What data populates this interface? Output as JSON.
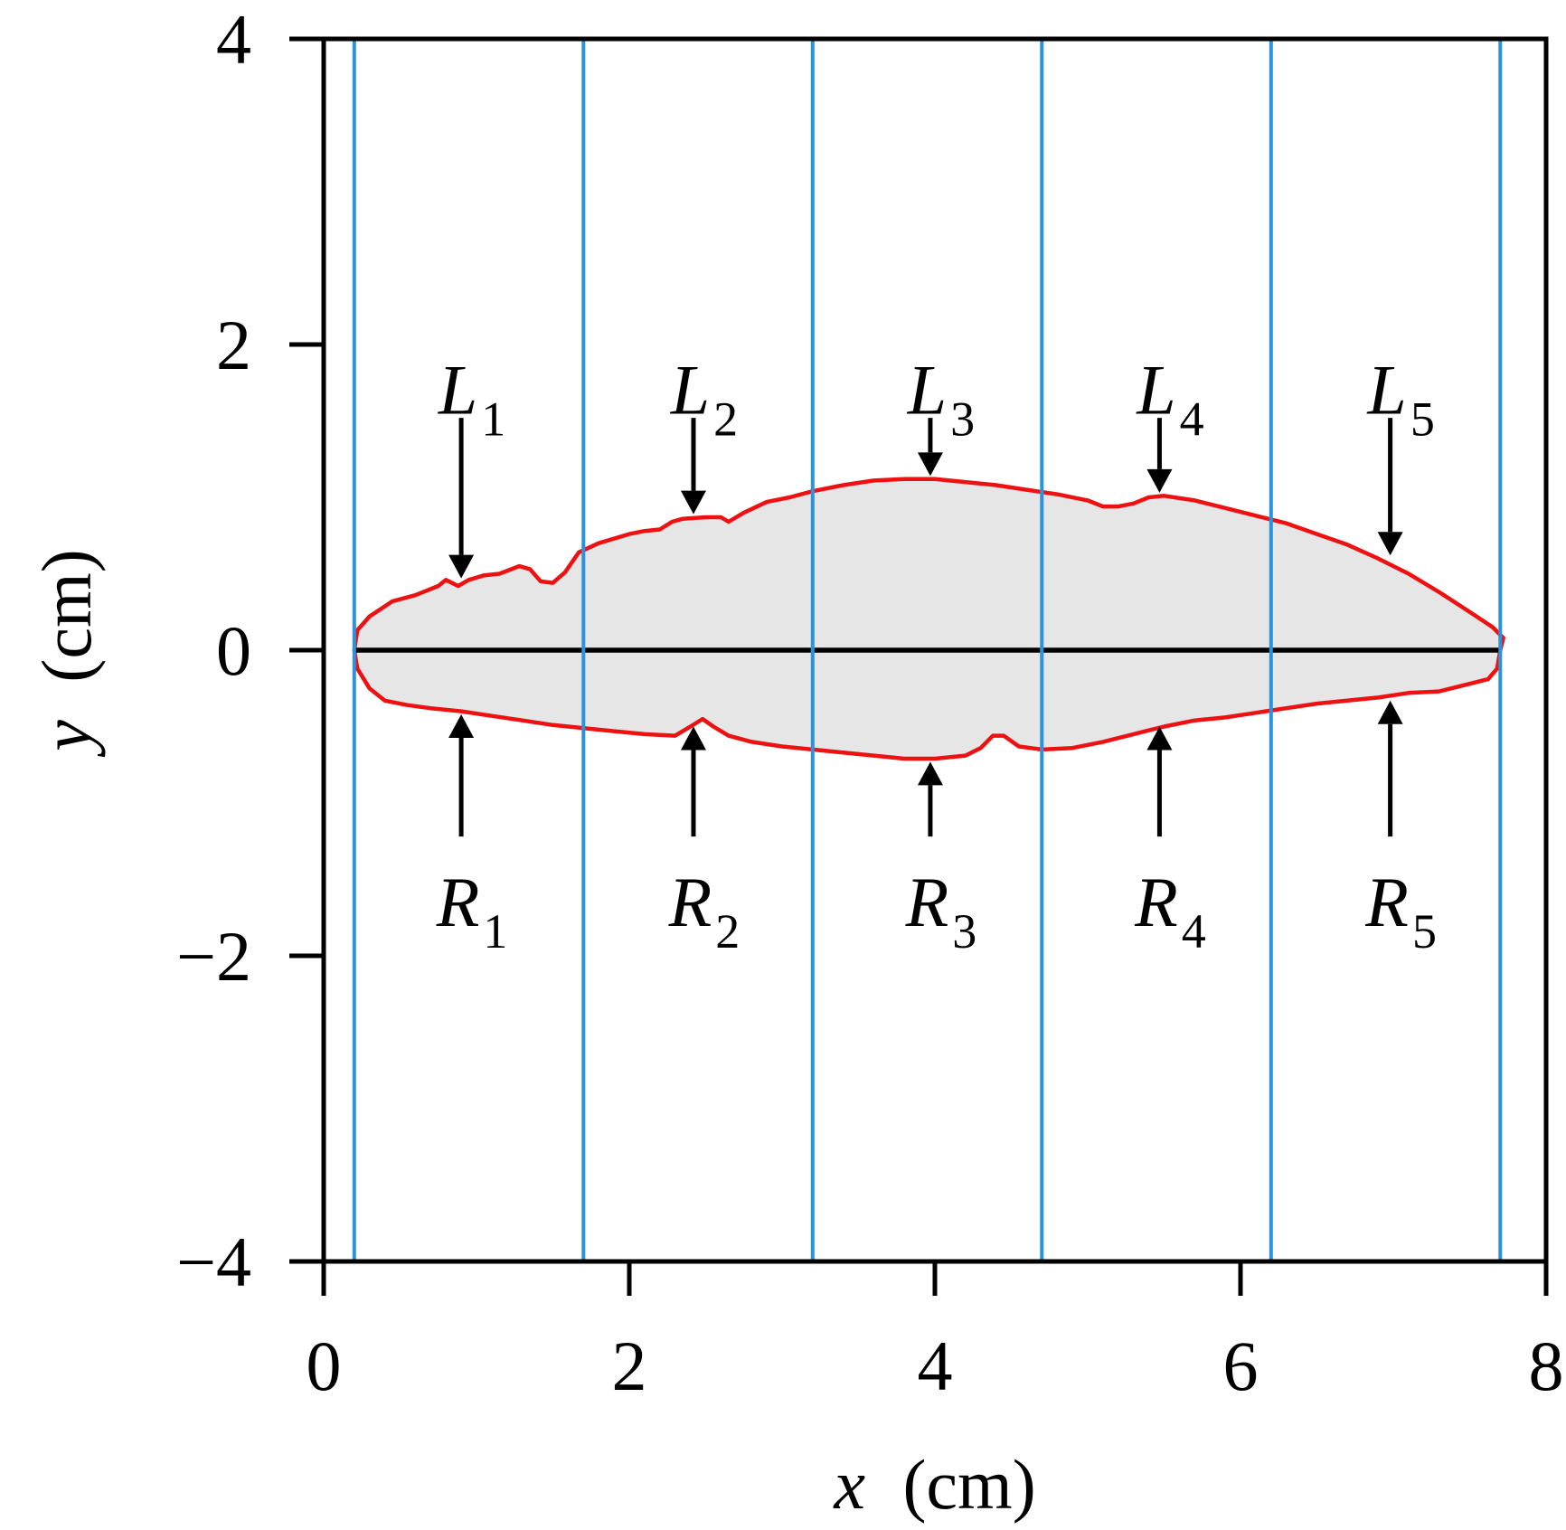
{
  "chart_data": {
    "type": "area",
    "xlabel": {
      "var": "x",
      "unit": "(cm)"
    },
    "ylabel": {
      "var": "y",
      "unit": "(cm)"
    },
    "xlim": [
      0,
      8
    ],
    "ylim": [
      -4,
      4
    ],
    "x_ticks": [
      0,
      2,
      4,
      6,
      8
    ],
    "y_ticks": [
      4,
      2,
      0,
      -2,
      -4
    ],
    "y_tick_labels": [
      "4",
      "2",
      "0",
      "−2",
      "−4"
    ],
    "grid": false,
    "colors": {
      "outline": "#ee1111",
      "fill": "#e6e6e6",
      "vlines": "#2a93dd",
      "midline": "#000000"
    },
    "vertical_lines_x": [
      0.2,
      1.7,
      3.2,
      4.7,
      6.2,
      7.7
    ],
    "midline": {
      "x_start": 0.2,
      "x_end": 7.7,
      "y": 0
    },
    "upper_boundary": [
      [
        0.2,
        0.0
      ],
      [
        0.22,
        0.13
      ],
      [
        0.3,
        0.22
      ],
      [
        0.45,
        0.32
      ],
      [
        0.6,
        0.36
      ],
      [
        0.75,
        0.42
      ],
      [
        0.8,
        0.46
      ],
      [
        0.88,
        0.42
      ],
      [
        0.95,
        0.46
      ],
      [
        1.05,
        0.49
      ],
      [
        1.15,
        0.5
      ],
      [
        1.28,
        0.55
      ],
      [
        1.35,
        0.53
      ],
      [
        1.42,
        0.45
      ],
      [
        1.5,
        0.44
      ],
      [
        1.58,
        0.51
      ],
      [
        1.67,
        0.64
      ],
      [
        1.8,
        0.7
      ],
      [
        2.0,
        0.76
      ],
      [
        2.1,
        0.78
      ],
      [
        2.2,
        0.79
      ],
      [
        2.28,
        0.84
      ],
      [
        2.35,
        0.86
      ],
      [
        2.5,
        0.87
      ],
      [
        2.6,
        0.87
      ],
      [
        2.65,
        0.84
      ],
      [
        2.75,
        0.9
      ],
      [
        2.9,
        0.97
      ],
      [
        3.05,
        1.0
      ],
      [
        3.2,
        1.04
      ],
      [
        3.4,
        1.08
      ],
      [
        3.6,
        1.11
      ],
      [
        3.8,
        1.12
      ],
      [
        4.0,
        1.12
      ],
      [
        4.2,
        1.1
      ],
      [
        4.4,
        1.08
      ],
      [
        4.6,
        1.05
      ],
      [
        4.8,
        1.02
      ],
      [
        5.0,
        0.98
      ],
      [
        5.1,
        0.94
      ],
      [
        5.2,
        0.94
      ],
      [
        5.3,
        0.96
      ],
      [
        5.4,
        1.0
      ],
      [
        5.5,
        1.01
      ],
      [
        5.7,
        0.98
      ],
      [
        5.9,
        0.93
      ],
      [
        6.1,
        0.88
      ],
      [
        6.3,
        0.83
      ],
      [
        6.5,
        0.76
      ],
      [
        6.7,
        0.69
      ],
      [
        6.9,
        0.6
      ],
      [
        7.1,
        0.5
      ],
      [
        7.3,
        0.38
      ],
      [
        7.5,
        0.25
      ],
      [
        7.65,
        0.15
      ],
      [
        7.72,
        0.08
      ],
      [
        7.7,
        0.0
      ]
    ],
    "lower_boundary": [
      [
        0.2,
        0.0
      ],
      [
        0.22,
        -0.12
      ],
      [
        0.3,
        -0.25
      ],
      [
        0.4,
        -0.33
      ],
      [
        0.55,
        -0.36
      ],
      [
        0.7,
        -0.38
      ],
      [
        0.9,
        -0.4
      ],
      [
        1.1,
        -0.43
      ],
      [
        1.3,
        -0.46
      ],
      [
        1.5,
        -0.49
      ],
      [
        1.7,
        -0.51
      ],
      [
        1.9,
        -0.53
      ],
      [
        2.1,
        -0.55
      ],
      [
        2.3,
        -0.56
      ],
      [
        2.4,
        -0.5
      ],
      [
        2.48,
        -0.45
      ],
      [
        2.55,
        -0.5
      ],
      [
        2.65,
        -0.56
      ],
      [
        2.8,
        -0.6
      ],
      [
        3.0,
        -0.63
      ],
      [
        3.2,
        -0.65
      ],
      [
        3.4,
        -0.67
      ],
      [
        3.6,
        -0.69
      ],
      [
        3.8,
        -0.71
      ],
      [
        4.0,
        -0.71
      ],
      [
        4.2,
        -0.69
      ],
      [
        4.3,
        -0.64
      ],
      [
        4.38,
        -0.56
      ],
      [
        4.45,
        -0.56
      ],
      [
        4.55,
        -0.63
      ],
      [
        4.7,
        -0.65
      ],
      [
        4.9,
        -0.64
      ],
      [
        5.1,
        -0.6
      ],
      [
        5.3,
        -0.55
      ],
      [
        5.5,
        -0.5
      ],
      [
        5.7,
        -0.46
      ],
      [
        5.9,
        -0.44
      ],
      [
        6.1,
        -0.41
      ],
      [
        6.3,
        -0.38
      ],
      [
        6.5,
        -0.35
      ],
      [
        6.7,
        -0.33
      ],
      [
        6.9,
        -0.31
      ],
      [
        7.1,
        -0.28
      ],
      [
        7.3,
        -0.27
      ],
      [
        7.5,
        -0.22
      ],
      [
        7.62,
        -0.19
      ],
      [
        7.68,
        -0.12
      ],
      [
        7.7,
        0.0
      ]
    ],
    "annotations": [
      {
        "label": "L",
        "sub": "1",
        "x": 0.9,
        "dir": "down",
        "tail_y": 1.52,
        "tip_y": 0.47,
        "text_y": 1.7
      },
      {
        "label": "L",
        "sub": "2",
        "x": 2.42,
        "dir": "down",
        "tail_y": 1.52,
        "tip_y": 0.89,
        "text_y": 1.7
      },
      {
        "label": "L",
        "sub": "3",
        "x": 3.97,
        "dir": "down",
        "tail_y": 1.52,
        "tip_y": 1.14,
        "text_y": 1.7
      },
      {
        "label": "L",
        "sub": "4",
        "x": 5.47,
        "dir": "down",
        "tail_y": 1.52,
        "tip_y": 1.03,
        "text_y": 1.7
      },
      {
        "label": "L",
        "sub": "5",
        "x": 6.98,
        "dir": "down",
        "tail_y": 1.52,
        "tip_y": 0.62,
        "text_y": 1.7
      },
      {
        "label": "R",
        "sub": "1",
        "x": 0.9,
        "dir": "up",
        "tail_y": -1.22,
        "tip_y": -0.42,
        "text_y": -1.65
      },
      {
        "label": "R",
        "sub": "2",
        "x": 2.42,
        "dir": "up",
        "tail_y": -1.22,
        "tip_y": -0.5,
        "text_y": -1.65
      },
      {
        "label": "R",
        "sub": "3",
        "x": 3.97,
        "dir": "up",
        "tail_y": -1.22,
        "tip_y": -0.73,
        "text_y": -1.65
      },
      {
        "label": "R",
        "sub": "4",
        "x": 5.47,
        "dir": "up",
        "tail_y": -1.22,
        "tip_y": -0.5,
        "text_y": -1.65
      },
      {
        "label": "R",
        "sub": "5",
        "x": 6.98,
        "dir": "up",
        "tail_y": -1.22,
        "tip_y": -0.33,
        "text_y": -1.65
      }
    ]
  }
}
